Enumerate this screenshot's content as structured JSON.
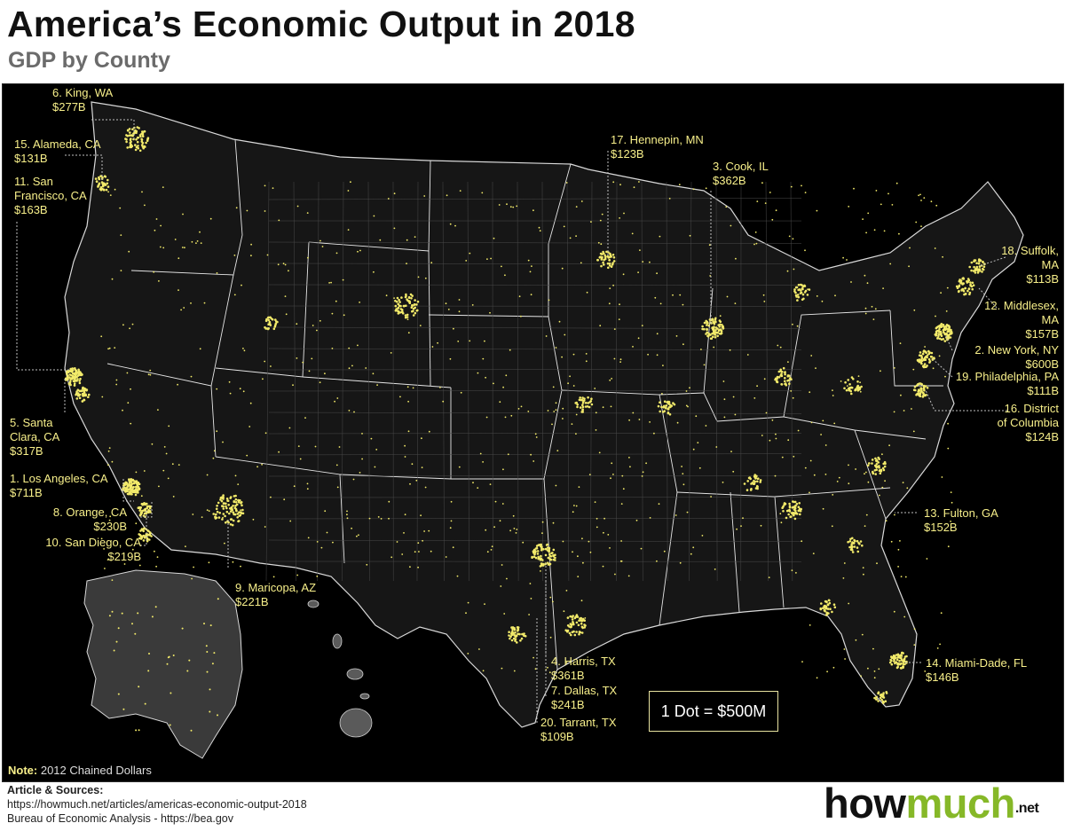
{
  "title": "America’s Economic Output in 2018",
  "subtitle": "GDP by County",
  "map": {
    "legend": "1 Dot = $500M",
    "note_label": "Note:",
    "note_text": "2012 Chained Dollars",
    "dot_color": "#f2ea6a",
    "land_color": "#1a1a1a",
    "border_color": "#e6e6e6",
    "callouts": [
      {
        "id": "king",
        "text": "6. King, WA\n$277B"
      },
      {
        "id": "alameda",
        "text": "15. Alameda, CA\n$131B"
      },
      {
        "id": "san-francisco",
        "text": "11. San\nFrancisco, CA\n$163B"
      },
      {
        "id": "santa-clara",
        "text": "5. Santa\nClara, CA\n$317B"
      },
      {
        "id": "los-angeles",
        "text": "1. Los Angeles, CA\n$711B"
      },
      {
        "id": "orange",
        "text": "8. Orange, CA\n$230B"
      },
      {
        "id": "san-diego",
        "text": "10. San Diego, CA\n$219B"
      },
      {
        "id": "maricopa",
        "text": "9. Maricopa, AZ\n$221B"
      },
      {
        "id": "hennepin",
        "text": "17. Hennepin, MN\n$123B"
      },
      {
        "id": "cook",
        "text": "3. Cook, IL\n$362B"
      },
      {
        "id": "suffolk",
        "text": "18. Suffolk,\nMA\n$113B"
      },
      {
        "id": "middlesex",
        "text": "12. Middlesex,\nMA\n$157B"
      },
      {
        "id": "new-york",
        "text": "2. New York, NY\n$600B"
      },
      {
        "id": "philadelphia",
        "text": "19. Philadelphia, PA\n$111B"
      },
      {
        "id": "dc",
        "text": "16. District\nof Columbia\n$124B"
      },
      {
        "id": "fulton",
        "text": "13. Fulton, GA\n$152B"
      },
      {
        "id": "miami-dade",
        "text": "14. Miami-Dade, FL\n$146B"
      },
      {
        "id": "harris",
        "text": "4. Harris, TX\n$361B"
      },
      {
        "id": "dallas",
        "text": "7. Dallas, TX\n$241B"
      },
      {
        "id": "tarrant",
        "text": "20. Tarrant, TX\n$109B"
      }
    ]
  },
  "sources": {
    "heading": "Article & Sources:",
    "line1": "https://howmuch.net/articles/americas-economic-output-2018",
    "line2": "Bureau of Economic Analysis - https://bea.gov"
  },
  "logo": {
    "part1": "how",
    "part2": "much",
    "suffix": ".net"
  }
}
